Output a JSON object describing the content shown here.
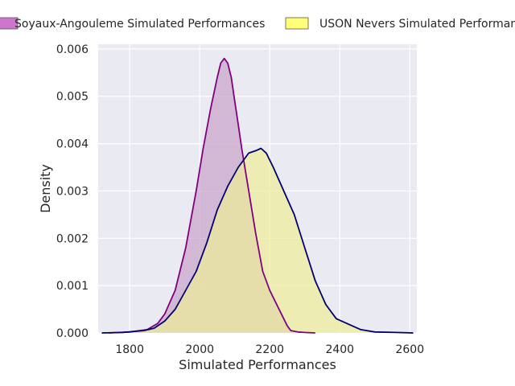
{
  "chart_data": {
    "type": "area",
    "title": "",
    "xlabel": "Simulated Performances",
    "ylabel": "Density",
    "xlim": [
      1710,
      2620
    ],
    "ylim": [
      0,
      0.0061
    ],
    "xticks": [
      "1800",
      "2000",
      "2200",
      "2400",
      "2600"
    ],
    "yticks": [
      "0.000",
      "0.001",
      "0.002",
      "0.003",
      "0.004",
      "0.005",
      "0.006"
    ],
    "grid": true,
    "legend_position": "top",
    "series": [
      {
        "name": "Soyaux-Angouleme Simulated Performances",
        "fill": "#c8a2c8",
        "line": "#800080",
        "legend_fill": "#cc77cc",
        "x": [
          1740,
          1800,
          1850,
          1880,
          1900,
          1930,
          1960,
          1990,
          2010,
          2030,
          2050,
          2060,
          2070,
          2080,
          2090,
          2100,
          2110,
          2120,
          2140,
          2160,
          2180,
          2200,
          2220,
          2240,
          2250,
          2260,
          2280,
          2300,
          2330
        ],
        "y": [
          0.0,
          2e-05,
          7e-05,
          0.0002,
          0.0004,
          0.0009,
          0.0018,
          0.003,
          0.0039,
          0.0047,
          0.0054,
          0.0057,
          0.0058,
          0.0057,
          0.0054,
          0.0049,
          0.0044,
          0.0039,
          0.003,
          0.0021,
          0.0013,
          0.0009,
          0.0006,
          0.0003,
          0.00015,
          5e-05,
          2e-05,
          1e-05,
          0.0
        ]
      },
      {
        "name": "USON Nevers Simulated Performances",
        "fill": "#eeee99",
        "line": "#000070",
        "legend_fill": "#ffff77",
        "x": [
          1720,
          1780,
          1840,
          1870,
          1900,
          1930,
          1960,
          1990,
          2020,
          2050,
          2080,
          2110,
          2140,
          2160,
          2175,
          2190,
          2210,
          2240,
          2270,
          2300,
          2330,
          2360,
          2390,
          2420,
          2460,
          2500,
          2560,
          2610
        ],
        "y": [
          0.0,
          1e-05,
          5e-05,
          0.0001,
          0.00025,
          0.0005,
          0.0009,
          0.0013,
          0.0019,
          0.0026,
          0.0031,
          0.0035,
          0.0038,
          0.00385,
          0.0039,
          0.0038,
          0.0035,
          0.003,
          0.0025,
          0.0018,
          0.0011,
          0.0006,
          0.0003,
          0.0002,
          7e-05,
          2e-05,
          1e-05,
          0.0
        ]
      }
    ]
  }
}
